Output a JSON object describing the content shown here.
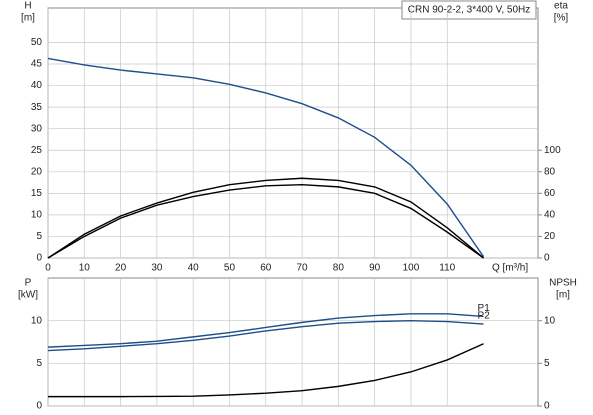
{
  "chart_data": [
    {
      "type": "line",
      "legend_title": "CRN 90-2-2, 3*400 V, 50Hz",
      "ylabel": "H",
      "ylabel_unit": "[m]",
      "y2label": "eta",
      "y2label_unit": "[%]",
      "xlabel": "Q [m³/h]",
      "x": [
        0,
        10,
        20,
        30,
        40,
        50,
        60,
        70,
        80,
        90,
        100,
        110,
        120
      ],
      "xlim": [
        0,
        135
      ],
      "xticks": [
        0,
        10,
        20,
        30,
        40,
        50,
        60,
        70,
        80,
        90,
        100,
        110
      ],
      "ylim": [
        0,
        58
      ],
      "yticks": [
        0,
        5,
        10,
        15,
        20,
        25,
        30,
        35,
        40,
        45,
        50
      ],
      "y2lim": [
        0,
        232
      ],
      "y2ticks": [
        0,
        20,
        40,
        60,
        80,
        100
      ],
      "grid": true,
      "series": [
        {
          "color": "#1f4e8c",
          "axis": "y",
          "values": [
            46.3,
            44.8,
            43.6,
            42.7,
            41.8,
            40.3,
            38.3,
            35.8,
            32.5,
            28.0,
            21.5,
            12.5,
            0.3
          ]
        },
        {
          "color": "#000000",
          "axis": "y2",
          "values": [
            0,
            22,
            39,
            51,
            61,
            68,
            72,
            74,
            72,
            66,
            52,
            28,
            0
          ]
        },
        {
          "color": "#000000",
          "axis": "y2",
          "values": [
            0,
            20,
            37,
            49,
            57,
            63,
            67,
            68,
            66,
            60,
            46,
            24,
            0
          ]
        }
      ]
    },
    {
      "type": "line",
      "ylabel": "P",
      "ylabel_unit": "[kW]",
      "y2label": "NPSH",
      "y2label_unit": "[m]",
      "x": [
        0,
        10,
        20,
        30,
        40,
        50,
        60,
        70,
        80,
        90,
        100,
        110,
        120
      ],
      "xlim": [
        0,
        135
      ],
      "ylim": [
        0,
        15
      ],
      "yticks": [
        0,
        5,
        10
      ],
      "y2lim": [
        0,
        15
      ],
      "y2ticks": [
        0,
        5,
        10
      ],
      "grid": true,
      "series": [
        {
          "name": "P1",
          "color": "#1f4e8c",
          "axis": "y",
          "values": [
            6.9,
            7.1,
            7.3,
            7.6,
            8.1,
            8.6,
            9.2,
            9.8,
            10.3,
            10.6,
            10.8,
            10.8,
            10.5
          ]
        },
        {
          "name": "P2",
          "color": "#1f4e8c",
          "axis": "y",
          "values": [
            6.5,
            6.7,
            7.0,
            7.3,
            7.7,
            8.2,
            8.8,
            9.3,
            9.7,
            9.9,
            10.0,
            9.9,
            9.6
          ]
        },
        {
          "color": "#000000",
          "axis": "y2",
          "values": [
            1.1,
            1.1,
            1.1,
            1.12,
            1.15,
            1.3,
            1.5,
            1.8,
            2.3,
            3.0,
            4.0,
            5.4,
            7.3
          ]
        }
      ]
    }
  ]
}
